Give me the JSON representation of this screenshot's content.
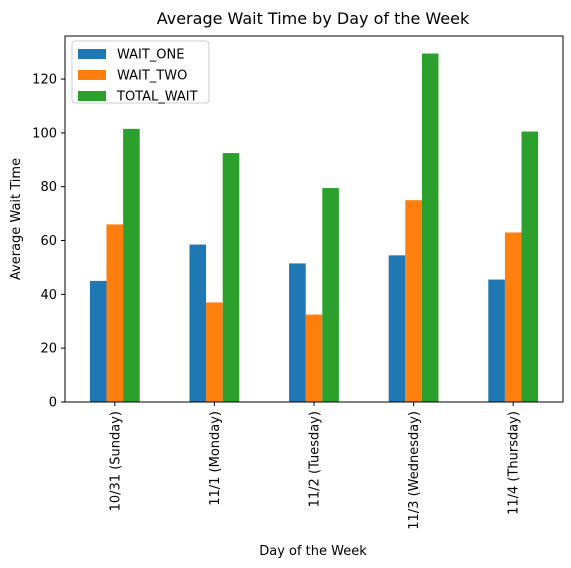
{
  "chart_data": {
    "type": "bar",
    "title": "Average Wait Time by Day of the Week",
    "xlabel": "Day of the Week",
    "ylabel": "Average Wait Time",
    "categories": [
      "10/31 (Sunday)",
      "11/1 (Monday)",
      "11/2 (Tuesday)",
      "11/3 (Wednesday)",
      "11/4 (Thursday)"
    ],
    "series": [
      {
        "name": "WAIT_ONE",
        "color": "#1f77b4",
        "values": [
          45.0,
          58.5,
          51.5,
          54.5,
          45.5
        ]
      },
      {
        "name": "WAIT_TWO",
        "color": "#ff7f0e",
        "values": [
          66.0,
          37.0,
          32.5,
          75.0,
          63.0
        ]
      },
      {
        "name": "TOTAL_WAIT",
        "color": "#2ca02c",
        "values": [
          101.5,
          92.5,
          79.5,
          129.5,
          100.5
        ]
      }
    ],
    "ylim": [
      0,
      136
    ],
    "yticks": [
      0,
      20,
      40,
      60,
      80,
      100,
      120
    ],
    "grid": false,
    "legend_position": "upper left"
  }
}
